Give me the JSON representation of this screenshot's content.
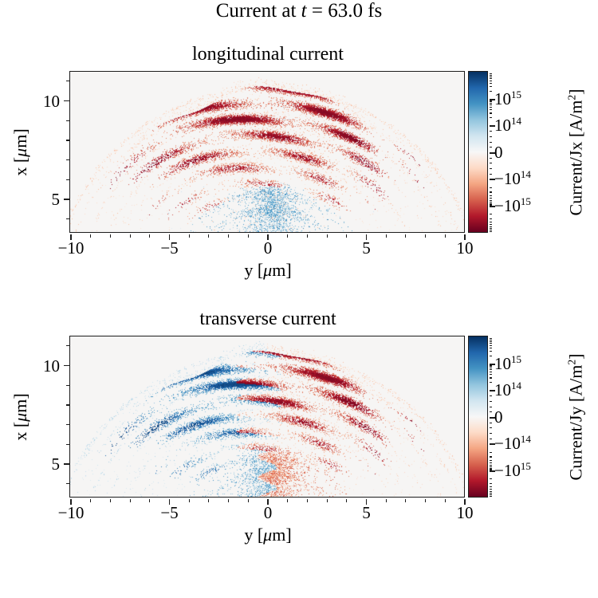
{
  "chart_data": {
    "type": "heatmap",
    "figure": {
      "suptitle": {
        "pre": "Current at ",
        "math": "t",
        "post": " = 63.0 fs"
      },
      "time_fs": 63.0
    },
    "plot_background": "#f6f5f4",
    "axes": {
      "x": {
        "label": {
          "pre": "y [",
          "mu": "μ",
          "post": "m]"
        },
        "range": [
          -10,
          10
        ],
        "major_ticks": {
          "values": [
            -10,
            -5,
            0,
            5,
            10
          ],
          "labels": [
            "−10",
            "−5",
            "0",
            "5",
            "10"
          ]
        },
        "minor_step": 1
      },
      "y": {
        "label": {
          "pre": "x [",
          "mu": "μ",
          "post": "m]"
        },
        "range": [
          3.3,
          11.44
        ],
        "major_ticks": {
          "values": [
            5,
            10
          ],
          "labels": [
            "5",
            "10"
          ]
        },
        "minor_values": [
          4,
          6,
          7,
          8,
          9,
          11
        ]
      }
    },
    "colorbar": {
      "scale": "symlog",
      "linthresh": 100000000000000.0,
      "vmin": -1e+16,
      "vmax": 1e+16,
      "colormap": "RdBu",
      "stops": [
        "#67001f",
        "#b2182b",
        "#d6604d",
        "#f4a582",
        "#fddbc7",
        "#f7f7f7",
        "#d1e5f0",
        "#92c5de",
        "#4393c3",
        "#2166ac",
        "#053061"
      ],
      "major_ticks": [
        {
          "label_base": "10",
          "label_exp": "15",
          "value": 1000000000000000.0
        },
        {
          "label_base": "10",
          "label_exp": "14",
          "value": 100000000000000.0
        },
        {
          "label_base": "0",
          "label_exp": "",
          "value": 0
        },
        {
          "label_base": "−10",
          "label_exp": "14",
          "value": -100000000000000.0
        },
        {
          "label_base": "−10",
          "label_exp": "15",
          "value": -1000000000000000.0
        }
      ]
    },
    "panels": [
      {
        "id": "jx",
        "title": "longitudinal current",
        "colorbar_label": {
          "pre": "Current/Jx [A/m",
          "sup": "2",
          "post": "]"
        },
        "sign_pattern": "dome negative (red), inner cloud positive (blue)",
        "seed": 20240
      },
      {
        "id": "jy",
        "title": "transverse current",
        "colorbar_label": {
          "pre": "Current/Jy [A/m",
          "sup": "2",
          "post": "]"
        },
        "sign_pattern": "antisymmetric in y: left half positive (blue), right half negative (red), interleaved wavy bands",
        "seed": 7707
      }
    ],
    "structure": {
      "description": "Particle-in-cell current density histogram: dome-shaped expanding shell of wavy overlapping filament layers centered at origin, faint outer shell arcs, diffuse speckle cloud near the axis bottom.",
      "dome": {
        "r_in": 5.25,
        "r_out": 10.45,
        "flatten": 1.15,
        "half_angle": 0.68,
        "y_scale": 0.98,
        "layer_freq": 7.6,
        "lens_freq": 10
      },
      "arcs": [
        {
          "r": 7.05,
          "w": 0.12,
          "d": 0.09,
          "span": 1.02
        },
        {
          "r": 7.75,
          "w": 0.12,
          "d": 0.1,
          "span": 1.08
        },
        {
          "r": 8.55,
          "w": 0.11,
          "d": 0.11,
          "span": 1.15
        },
        {
          "r": 9.35,
          "w": 0.13,
          "d": 0.15,
          "span": 1.24
        },
        {
          "r": 10.05,
          "w": 0.12,
          "d": 0.13,
          "span": 1.3
        },
        {
          "r": 10.6,
          "w": 0.17,
          "d": 0.2,
          "span": 1.35
        }
      ],
      "cloud": {
        "r_max": 5.85,
        "haze": 0.2,
        "haze_y0": 0.2,
        "haze_sy": 3.2,
        "blob": 0.55,
        "bx": 4.6,
        "by": 0.3,
        "bsx": 1.25,
        "bsy": 1.0
      }
    }
  }
}
